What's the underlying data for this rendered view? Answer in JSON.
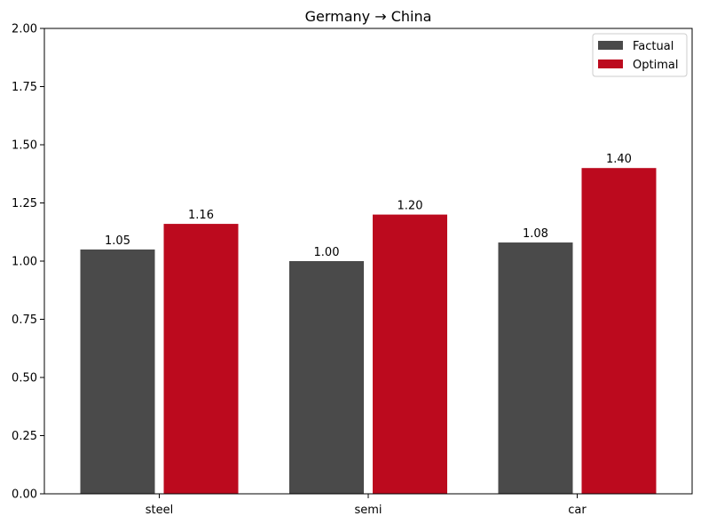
{
  "chart_data": {
    "type": "bar",
    "title": "Germany → China",
    "xlabel": "",
    "ylabel": "",
    "categories": [
      "steel",
      "semi",
      "car"
    ],
    "series": [
      {
        "name": "Factual",
        "values": [
          1.05,
          1.0,
          1.08
        ],
        "labels": [
          "1.05",
          "1.00",
          "1.08"
        ],
        "color": "#4a4a4a"
      },
      {
        "name": "Optimal",
        "values": [
          1.16,
          1.2,
          1.4
        ],
        "labels": [
          "1.16",
          "1.20",
          "1.40"
        ],
        "color": "#bc0a1e"
      }
    ],
    "ylim": [
      0,
      2.0
    ],
    "yticks": [
      "0.00",
      "0.25",
      "0.50",
      "0.75",
      "1.00",
      "1.25",
      "1.50",
      "1.75",
      "2.00"
    ],
    "grid": false,
    "legend_position": "top-right"
  }
}
